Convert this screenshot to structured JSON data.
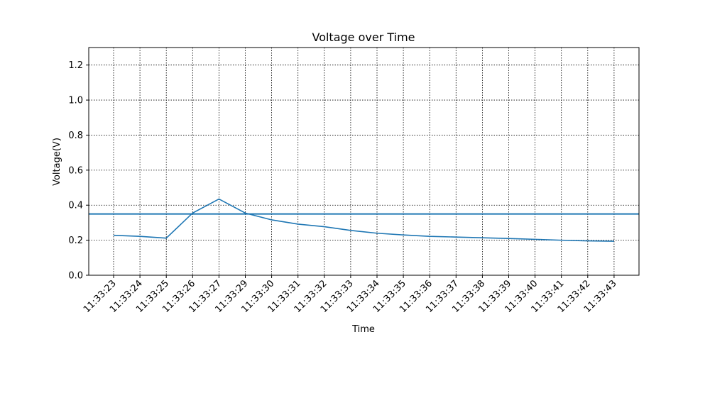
{
  "chart_data": {
    "type": "line",
    "title": "Voltage over Time",
    "xlabel": "Time",
    "ylabel": "Voltage(V)",
    "categories": [
      "11:33:23",
      "11:33:24",
      "11:33:25",
      "11:33:26",
      "11:33:27",
      "11:33:29",
      "11:33:30",
      "11:33:31",
      "11:33:32",
      "11:33:33",
      "11:33:34",
      "11:33:35",
      "11:33:36",
      "11:33:37",
      "11:33:38",
      "11:33:39",
      "11:33:40",
      "11:33:41",
      "11:33:42",
      "11:33:43"
    ],
    "series": [
      {
        "values": [
          0.228,
          0.222,
          0.212,
          0.355,
          0.435,
          0.355,
          0.316,
          0.292,
          0.277,
          0.256,
          0.24,
          0.23,
          0.222,
          0.218,
          0.214,
          0.21,
          0.205,
          0.2,
          0.196,
          0.194
        ],
        "color": "#1f77b4"
      }
    ],
    "threshold": {
      "value": 0.35,
      "color": "#1f77b4"
    },
    "ylim": [
      0,
      1.3
    ],
    "yticks": [
      0.0,
      0.2,
      0.4,
      0.6,
      0.8,
      1.0,
      1.2
    ],
    "grid": true,
    "legend": "none"
  }
}
